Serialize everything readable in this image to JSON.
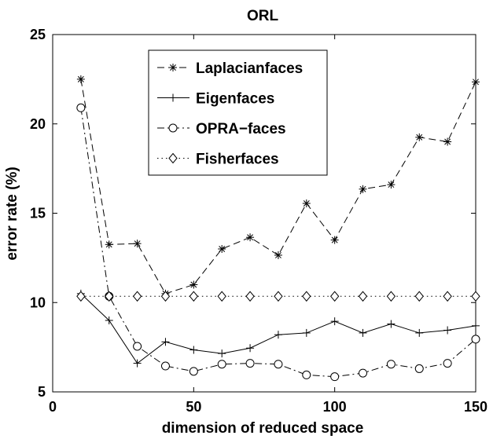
{
  "chart_data": {
    "type": "line",
    "title": "ORL",
    "xlabel": "dimension of reduced space",
    "ylabel": "error rate (%)",
    "xlim": [
      0,
      150
    ],
    "ylim": [
      5,
      25
    ],
    "xticks": [
      0,
      50,
      100,
      150
    ],
    "yticks": [
      5,
      10,
      15,
      20,
      25
    ],
    "grid": false,
    "legend_position": "top-center",
    "x": [
      10,
      20,
      30,
      40,
      50,
      60,
      70,
      80,
      90,
      100,
      110,
      120,
      130,
      140,
      150
    ],
    "series": [
      {
        "name": "Laplacianfaces",
        "line_style": "dashed",
        "marker": "asterisk",
        "values": [
          22.5,
          13.25,
          13.3,
          10.5,
          11.0,
          13.0,
          13.65,
          12.65,
          15.55,
          13.5,
          16.35,
          16.6,
          19.25,
          19.0,
          22.35
        ]
      },
      {
        "name": "Eigenfaces",
        "line_style": "solid",
        "marker": "plus",
        "values": [
          10.5,
          9.0,
          6.6,
          7.8,
          7.35,
          7.15,
          7.45,
          8.2,
          8.3,
          8.95,
          8.3,
          8.8,
          8.3,
          8.45,
          8.7
        ]
      },
      {
        "name": "OPRA−faces",
        "line_style": "dashdot",
        "marker": "circle",
        "values": [
          20.9,
          10.35,
          7.55,
          6.45,
          6.15,
          6.55,
          6.6,
          6.55,
          5.95,
          5.85,
          6.05,
          6.55,
          6.3,
          6.6,
          7.95
        ]
      },
      {
        "name": "Fisherfaces",
        "line_style": "dotted",
        "marker": "diamond",
        "values": [
          10.35,
          10.35,
          10.35,
          10.35,
          10.35,
          10.35,
          10.35,
          10.35,
          10.35,
          10.35,
          10.35,
          10.35,
          10.35,
          10.35,
          10.35
        ]
      }
    ]
  }
}
